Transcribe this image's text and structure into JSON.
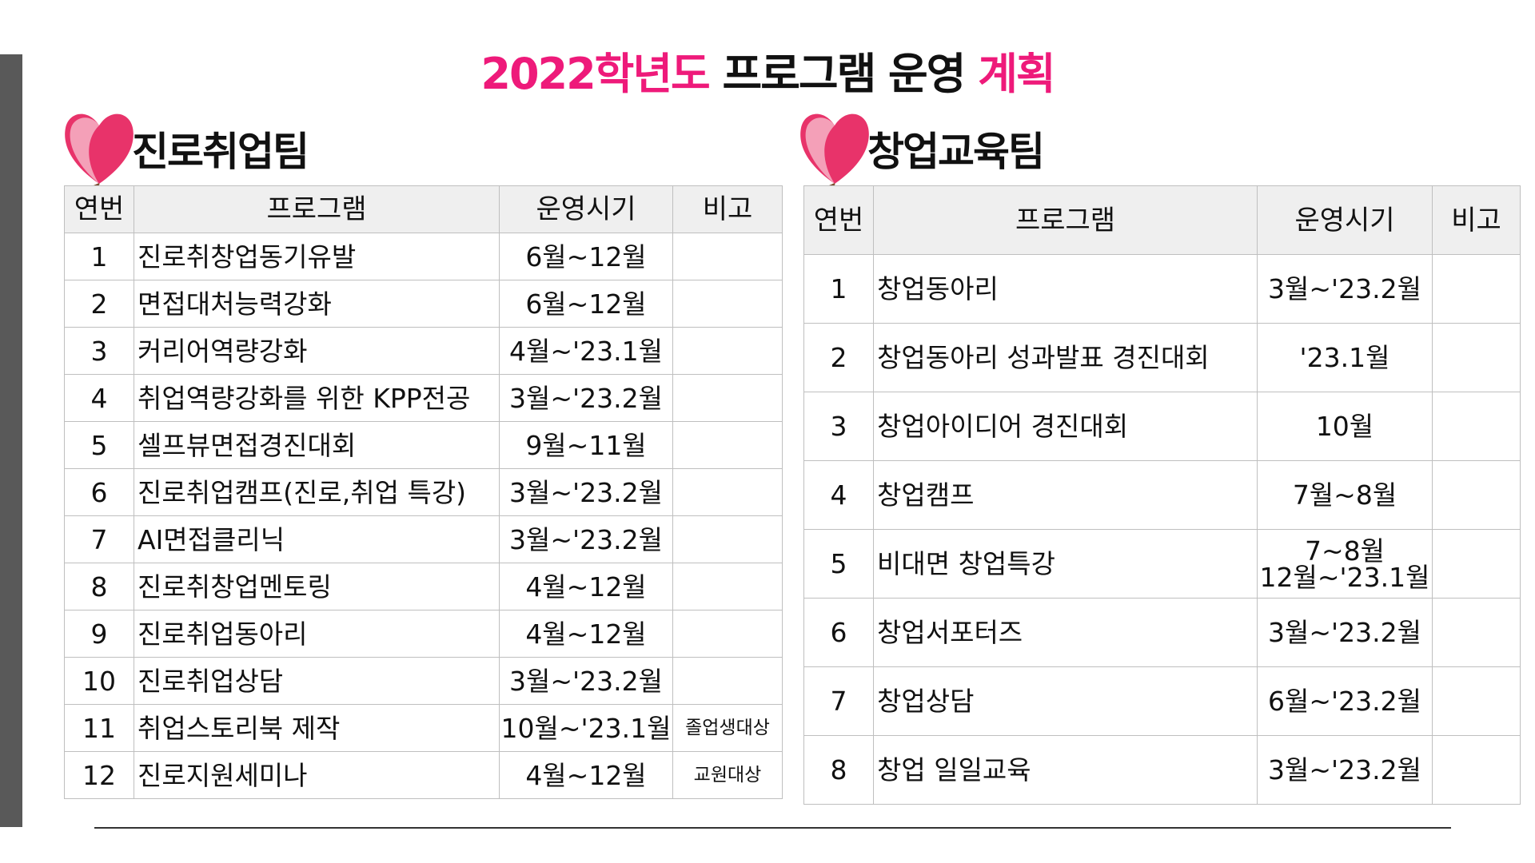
{
  "title": {
    "parts": [
      "2022학년도",
      " 프로그램 운영 ",
      "계획"
    ]
  },
  "sections": [
    {
      "title": "진로취업팀",
      "table": {
        "headers": [
          "연번",
          "프로그램",
          "운영시기",
          "비고"
        ],
        "rows": [
          [
            "1",
            "진로취창업동기유발",
            "6월~12월",
            ""
          ],
          [
            "2",
            "면접대처능력강화",
            "6월~12월",
            ""
          ],
          [
            "3",
            "커리어역량강화",
            "4월~'23.1월",
            ""
          ],
          [
            "4",
            "취업역량강화를 위한 KPP전공",
            "3월~'23.2월",
            ""
          ],
          [
            "5",
            "셀프뷰면접경진대회",
            "9월~11월",
            ""
          ],
          [
            "6",
            "진로취업캠프(진로,취업 특강)",
            "3월~'23.2월",
            ""
          ],
          [
            "7",
            "AI면접클리닉",
            "3월~'23.2월",
            ""
          ],
          [
            "8",
            "진로취창업멘토링",
            "4월~12월",
            ""
          ],
          [
            "9",
            "진로취업동아리",
            "4월~12월",
            ""
          ],
          [
            "10",
            "진로취업상담",
            "3월~'23.2월",
            ""
          ],
          [
            "11",
            "취업스토리북 제작",
            "10월~'23.1월",
            "졸업생대상"
          ],
          [
            "12",
            "진로지원세미나",
            "4월~12월",
            "교원대상"
          ]
        ]
      }
    },
    {
      "title": "창업교육팀",
      "table": {
        "headers": [
          "연번",
          "프로그램",
          "운영시기",
          "비고"
        ],
        "rows": [
          [
            "1",
            "창업동아리",
            "3월~'23.2월",
            ""
          ],
          [
            "2",
            "창업동아리 성과발표 경진대회",
            "'23.1월",
            ""
          ],
          [
            "3",
            "창업아이디어 경진대회",
            "10월",
            ""
          ],
          [
            "4",
            "창업캠프",
            "7월~8월",
            ""
          ],
          [
            "5",
            "비대면 창업특강",
            "7~8월\n12월~'23.1월",
            ""
          ],
          [
            "6",
            "창업서포터즈",
            "3월~'23.2월",
            ""
          ],
          [
            "7",
            "창업상담",
            "6월~'23.2월",
            ""
          ],
          [
            "8",
            "창업 일일교육",
            "3월~'23.2월",
            ""
          ]
        ]
      }
    }
  ]
}
